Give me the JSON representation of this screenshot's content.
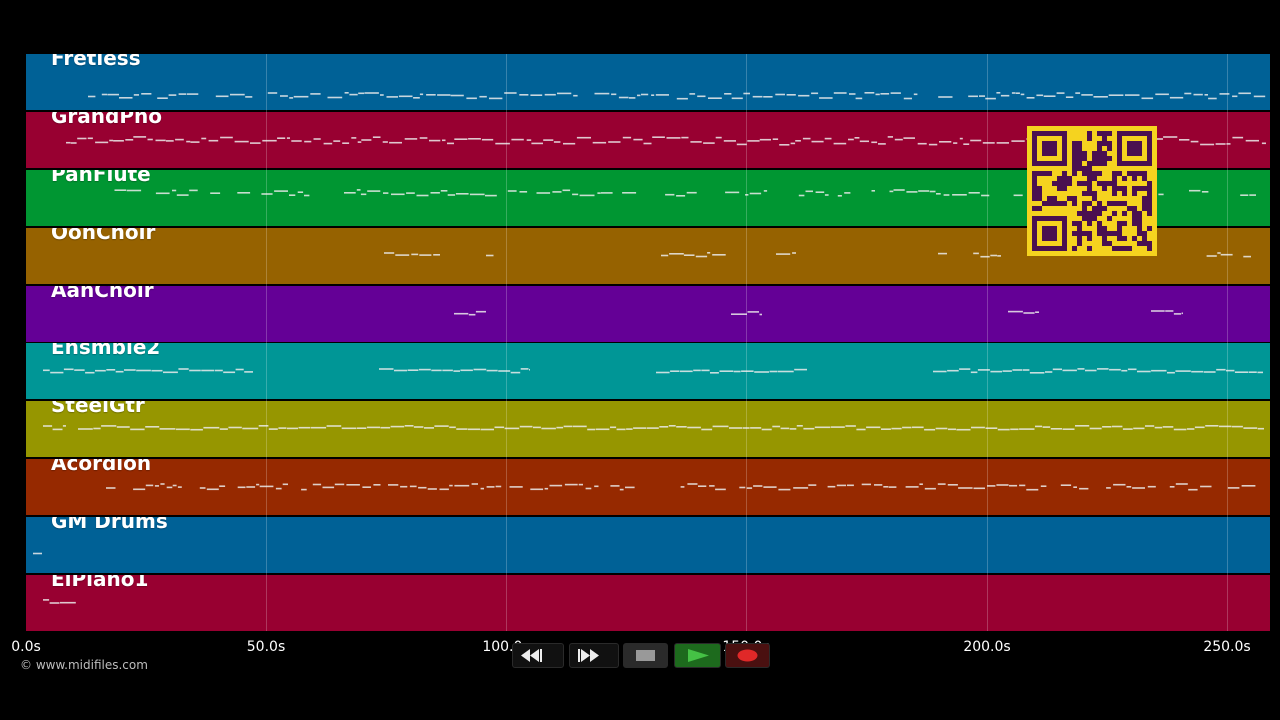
{
  "tracks": [
    {
      "name": "Fretless",
      "color": "#006196"
    },
    {
      "name": "GrandPno",
      "color": "#980031"
    },
    {
      "name": "PanFlute",
      "color": "#009632"
    },
    {
      "name": "OohChoir",
      "color": "#966200"
    },
    {
      "name": "AahChoir",
      "color": "#640096"
    },
    {
      "name": "Ensmble2",
      "color": "#009696"
    },
    {
      "name": "SteelGtr",
      "color": "#969600"
    },
    {
      "name": "Acordion",
      "color": "#962900"
    },
    {
      "name": "GM Drums",
      "color": "#006196"
    },
    {
      "name": "ElPiano1",
      "color": "#980031"
    }
  ],
  "axis": {
    "labels": [
      "0.0s",
      "50.0s",
      "100.0s",
      "150.0s",
      "200.0s",
      "250.0s"
    ]
  },
  "footer": {
    "copyright": "© www.midifiles.com"
  },
  "transport": {
    "buttons": [
      {
        "name": "rewind-button",
        "icon": "rewind-icon"
      },
      {
        "name": "fast-forward-button",
        "icon": "fast-forward-icon"
      },
      {
        "name": "stop-button",
        "icon": "stop-icon"
      },
      {
        "name": "play-button",
        "icon": "play-icon"
      },
      {
        "name": "record-button",
        "icon": "record-icon"
      }
    ]
  },
  "qr_code": {
    "icon": "qr-code-icon",
    "color": "#f5d31f",
    "module_color": "#4a1050"
  }
}
